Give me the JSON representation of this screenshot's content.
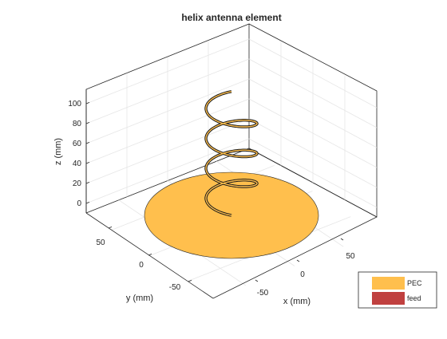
{
  "title": "helix antenna element",
  "axes": {
    "xlabel": "x (mm)",
    "ylabel": "y (mm)",
    "zlabel": "z (mm)",
    "x_ticks": [
      "-50",
      "0",
      "50"
    ],
    "y_ticks": [
      "-50",
      "0",
      "50"
    ],
    "z_ticks": [
      "0",
      "20",
      "40",
      "60",
      "80",
      "100"
    ],
    "grid": true
  },
  "legend": {
    "placement": "bottom-right",
    "items": [
      {
        "label": "PEC",
        "color": "#FFBF4D"
      },
      {
        "label": "feed",
        "color": "#C0403F"
      }
    ]
  },
  "colors": {
    "ground_plane": "#FFBF4D",
    "helix": "#FFBF4D",
    "helix_outline": "#1a1a1a",
    "feed": "#C0403F",
    "axis": "#262626",
    "grid": "#e6e6e6"
  },
  "model": {
    "ground_plane_radius_mm": 75,
    "helix_radius_mm": 22,
    "helix_turns": 3.5,
    "helix_start_height_mm": 0,
    "helix_end_height_mm": 105
  }
}
